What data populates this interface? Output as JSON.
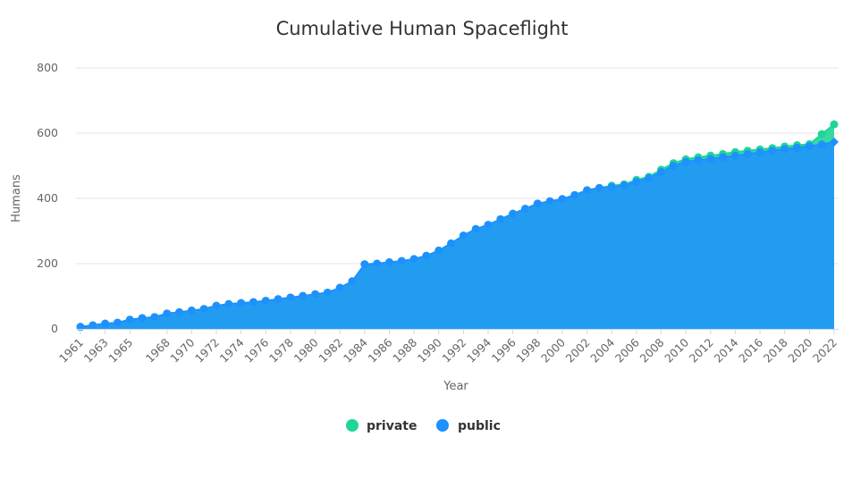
{
  "chart_data": {
    "type": "area",
    "title": "Cumulative Human Spaceflight",
    "xlabel": "Year",
    "ylabel": "Humans",
    "ylim": [
      0,
      800
    ],
    "yticks": [
      0,
      200,
      400,
      600,
      800
    ],
    "xtick_labels": [
      "1961",
      "1963",
      "1965",
      "1968",
      "1970",
      "1972",
      "1974",
      "1976",
      "1978",
      "1980",
      "1982",
      "1984",
      "1986",
      "1988",
      "1990",
      "1992",
      "1994",
      "1996",
      "1998",
      "2000",
      "2002",
      "2004",
      "2006",
      "2008",
      "2010",
      "2012",
      "2014",
      "2016",
      "2018",
      "2020",
      "2022"
    ],
    "grid": true,
    "legend_position": "bottom-center",
    "x": [
      1961,
      1962,
      1963,
      1964,
      1965,
      1966,
      1967,
      1968,
      1969,
      1970,
      1971,
      1972,
      1973,
      1974,
      1975,
      1976,
      1977,
      1978,
      1979,
      1980,
      1981,
      1982,
      1983,
      1984,
      1985,
      1986,
      1987,
      1988,
      1989,
      1990,
      1991,
      1992,
      1993,
      1994,
      1995,
      1996,
      1997,
      1998,
      1999,
      2000,
      2001,
      2002,
      2003,
      2004,
      2005,
      2006,
      2007,
      2008,
      2009,
      2010,
      2011,
      2012,
      2013,
      2014,
      2015,
      2016,
      2017,
      2018,
      2019,
      2020,
      2021,
      2022
    ],
    "series": [
      {
        "name": "private",
        "color": "#1fd597",
        "values": [
          6,
          11,
          16,
          19,
          28,
          33,
          36,
          47,
          51,
          56,
          61,
          71,
          76,
          79,
          82,
          86,
          91,
          96,
          101,
          106,
          111,
          126,
          146,
          198,
          200,
          204,
          208,
          214,
          224,
          240,
          262,
          286,
          306,
          319,
          336,
          353,
          368,
          384,
          391,
          398,
          410,
          425,
          432,
          439,
          443,
          457,
          466,
          488,
          508,
          520,
          526,
          531,
          536,
          542,
          546,
          550,
          554,
          559,
          563,
          566,
          597,
          627
        ]
      },
      {
        "name": "public",
        "color": "#1e90ff",
        "values": [
          6,
          11,
          16,
          19,
          28,
          33,
          36,
          47,
          51,
          56,
          61,
          71,
          76,
          79,
          82,
          86,
          91,
          96,
          101,
          106,
          111,
          126,
          146,
          198,
          200,
          204,
          208,
          214,
          224,
          240,
          262,
          286,
          306,
          319,
          336,
          353,
          368,
          384,
          391,
          398,
          410,
          425,
          432,
          435,
          440,
          451,
          462,
          481,
          500,
          512,
          517,
          521,
          526,
          531,
          536,
          541,
          546,
          551,
          555,
          560,
          565,
          573
        ]
      }
    ]
  }
}
